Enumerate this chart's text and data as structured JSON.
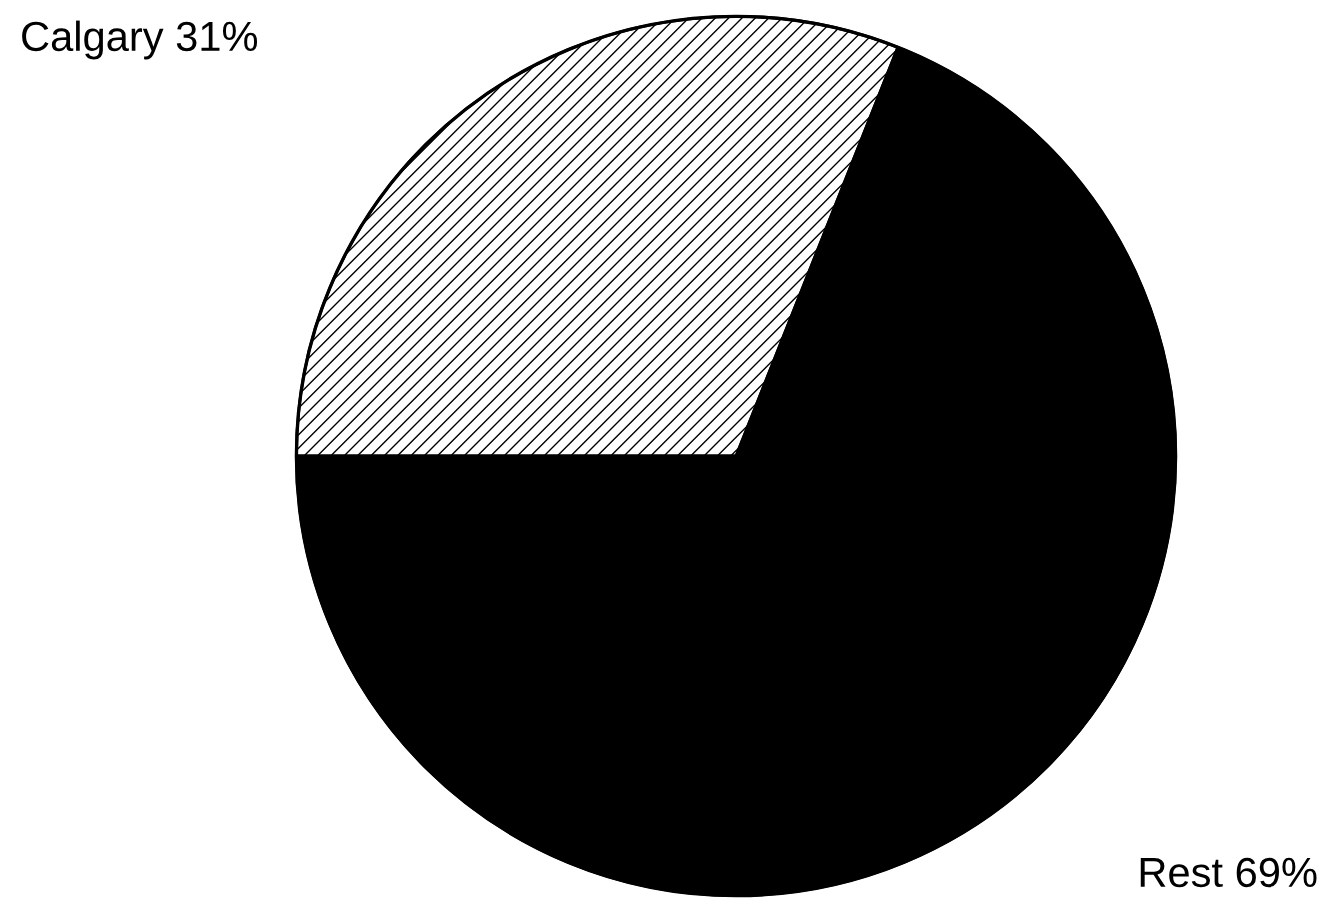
{
  "chart_data": {
    "type": "pie",
    "categories": [
      "Calgary",
      "Rest"
    ],
    "values": [
      31,
      69
    ],
    "colors": [
      "#ffffff",
      "#000000"
    ],
    "value_labels": [
      "31%",
      "69%"
    ]
  }
}
